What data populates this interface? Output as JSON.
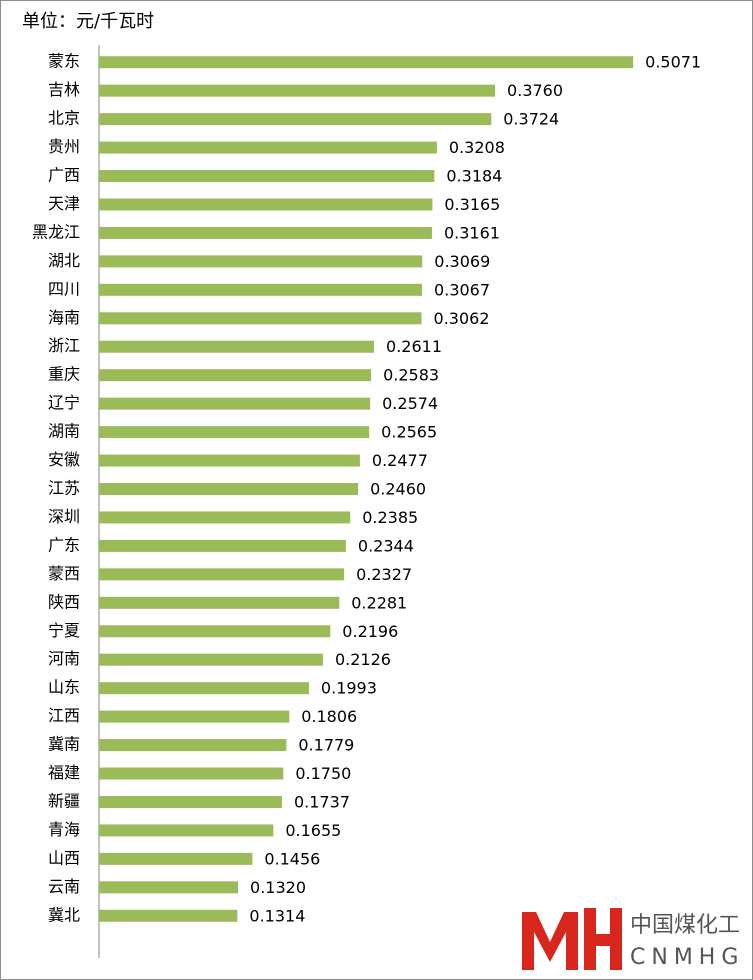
{
  "chart_data": {
    "type": "barh",
    "title": "单位：元/千瓦时",
    "categories": [
      "蒙东",
      "吉林",
      "北京",
      "贵州",
      "广西",
      "天津",
      "黑龙江",
      "湖北",
      "四川",
      "海南",
      "浙江",
      "重庆",
      "辽宁",
      "湖南",
      "安徽",
      "江苏",
      "深圳",
      "广东",
      "蒙西",
      "陕西",
      "宁夏",
      "河南",
      "山东",
      "江西",
      "冀南",
      "福建",
      "新疆",
      "青海",
      "山西",
      "云南",
      "冀北"
    ],
    "values": [
      0.5071,
      0.376,
      0.3724,
      0.3208,
      0.3184,
      0.3165,
      0.3161,
      0.3069,
      0.3067,
      0.3062,
      0.2611,
      0.2583,
      0.2574,
      0.2565,
      0.2477,
      0.246,
      0.2385,
      0.2344,
      0.2327,
      0.2281,
      0.2196,
      0.2126,
      0.1993,
      0.1806,
      0.1779,
      0.175,
      0.1737,
      0.1655,
      0.1456,
      0.132,
      0.1314
    ],
    "value_labels": [
      "0.5071",
      "0.3760",
      "0.3724",
      "0.3208",
      "0.3184",
      "0.3165",
      "0.3161",
      "0.3069",
      "0.3067",
      "0.3062",
      "0.2611",
      "0.2583",
      "0.2574",
      "0.2565",
      "0.2477",
      "0.2460",
      "0.2385",
      "0.2344",
      "0.2327",
      "0.2281",
      "0.2196",
      "0.2126",
      "0.1993",
      "0.1806",
      "0.1779",
      "0.1750",
      "0.1737",
      "0.1655",
      "0.1456",
      "0.1320",
      "0.1314"
    ],
    "color": "#9bbb59",
    "xlim": [
      0,
      0.6
    ]
  },
  "logo": {
    "text": "中国煤化工",
    "subtext": "CNMHG"
  }
}
